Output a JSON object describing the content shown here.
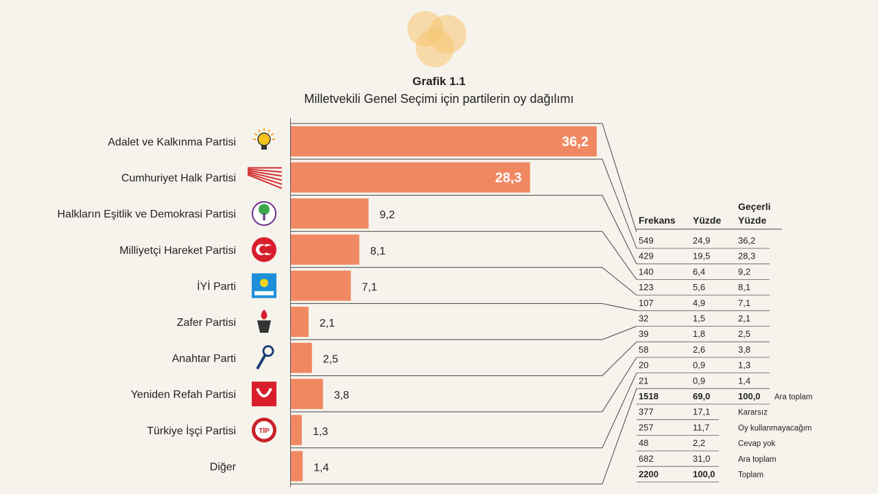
{
  "title": "Grafik 1.1",
  "subtitle": "Milletvekili Genel Seçimi için partilerin oy dağılımı",
  "colors": {
    "bar": "#f08862",
    "bar_dark_label": "#ffffff",
    "text": "#222222",
    "accent": "#f7c471"
  },
  "chart_data": {
    "type": "bar",
    "orientation": "horizontal",
    "categories": [
      "Adalet ve Kalkınma Partisi",
      "Cumhuriyet Halk Partisi",
      "Halkların Eşitlik ve Demokrasi Partisi",
      "Milliyetçi Hareket Partisi",
      "İYİ Parti",
      "Zafer Partisi",
      "Anahtar Parti",
      "Yeniden Refah Partisi",
      "Türkiye İşçi Partisi",
      "Diğer"
    ],
    "icons": [
      "lightbulb-icon",
      "six-arrows-icon",
      "tree-icon",
      "crescents-icon",
      "star-sun-icon",
      "torch-icon",
      "key-icon",
      "refah-logo-icon",
      "tip-logo-icon",
      ""
    ],
    "values": [
      36.2,
      28.3,
      9.2,
      8.1,
      7.1,
      2.1,
      2.5,
      3.8,
      1.3,
      1.4
    ],
    "value_labels": [
      "36,2",
      "28,3",
      "9,2",
      "8,1",
      "7,1",
      "2,1",
      "2,5",
      "3,8",
      "1,3",
      "1,4"
    ],
    "xlim": [
      0,
      36.2
    ],
    "grid": false,
    "legend": "none"
  },
  "table": {
    "headers": [
      "Frekans",
      "Yüzde",
      "Geçerli\nYüzde"
    ],
    "rows": [
      {
        "freq": "549",
        "pct": "24,9",
        "valid": "36,2",
        "label": "",
        "bold": false
      },
      {
        "freq": "429",
        "pct": "19,5",
        "valid": "28,3",
        "label": "",
        "bold": false
      },
      {
        "freq": "140",
        "pct": "6,4",
        "valid": "9,2",
        "label": "",
        "bold": false
      },
      {
        "freq": "123",
        "pct": "5,6",
        "valid": "8,1",
        "label": "",
        "bold": false
      },
      {
        "freq": "107",
        "pct": "4,9",
        "valid": "7,1",
        "label": "",
        "bold": false
      },
      {
        "freq": "32",
        "pct": "1,5",
        "valid": "2,1",
        "label": "",
        "bold": false
      },
      {
        "freq": "39",
        "pct": "1,8",
        "valid": "2,5",
        "label": "",
        "bold": false
      },
      {
        "freq": "58",
        "pct": "2,6",
        "valid": "3,8",
        "label": "",
        "bold": false
      },
      {
        "freq": "20",
        "pct": "0,9",
        "valid": "1,3",
        "label": "",
        "bold": false
      },
      {
        "freq": "21",
        "pct": "0,9",
        "valid": "1,4",
        "label": "",
        "bold": false
      },
      {
        "freq": "1518",
        "pct": "69,0",
        "valid": "100,0",
        "label": "Ara toplam",
        "bold": true
      },
      {
        "freq": "377",
        "pct": "17,1",
        "valid": "",
        "label": "Kararsız",
        "bold": false
      },
      {
        "freq": "257",
        "pct": "11,7",
        "valid": "",
        "label": "Oy kullanmayacağım",
        "bold": false
      },
      {
        "freq": "48",
        "pct": "2,2",
        "valid": "",
        "label": "Cevap yok",
        "bold": false
      },
      {
        "freq": "682",
        "pct": "31,0",
        "valid": "",
        "label": "Ara toplam",
        "bold": false
      },
      {
        "freq": "2200",
        "pct": "100,0",
        "valid": "",
        "label": "Toplam",
        "bold": true
      }
    ]
  }
}
